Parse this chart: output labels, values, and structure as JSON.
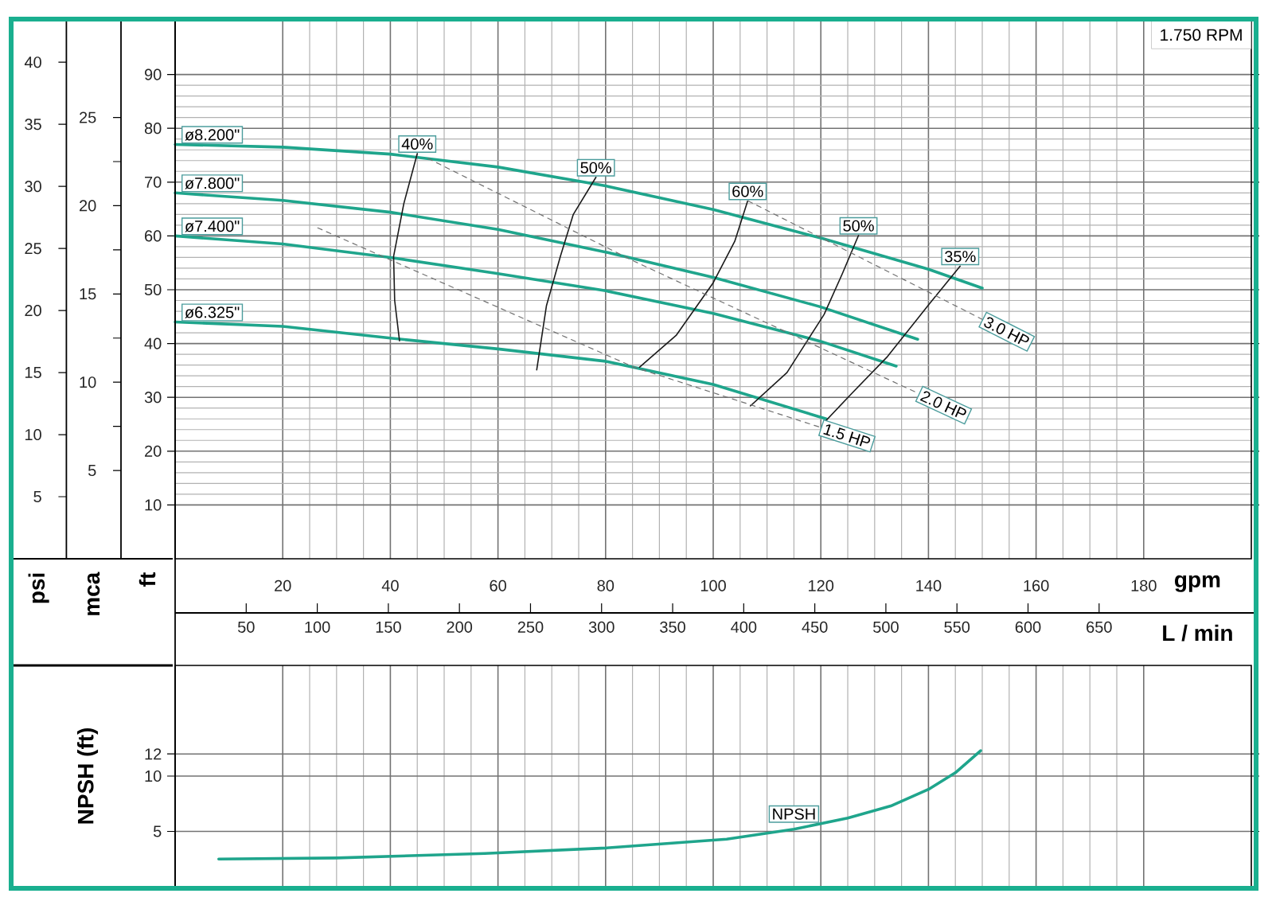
{
  "chart_data": [
    {
      "type": "line",
      "xlabel": "gpm",
      "ylabel": "ft",
      "y2label": "mca",
      "y3label": "psi",
      "x2label": "L / min",
      "xlim": [
        0,
        200
      ],
      "xticks": [
        20,
        40,
        60,
        80,
        100,
        120,
        140,
        160,
        180
      ],
      "ylim": [
        0,
        100
      ],
      "yticks": [
        10,
        20,
        30,
        40,
        50,
        60,
        70,
        80,
        90
      ],
      "y2lim": [
        0,
        30.48
      ],
      "y2ticks": [
        5,
        10,
        15,
        20,
        25
      ],
      "y3lim": [
        0,
        43.35
      ],
      "y3ticks": [
        5,
        10,
        15,
        20,
        25,
        30,
        35,
        40
      ],
      "x2lim": [
        0,
        757.08
      ],
      "x2ticks": [
        50,
        100,
        150,
        200,
        250,
        300,
        350,
        400,
        450,
        500,
        550,
        600,
        650
      ],
      "grid": true,
      "annotations": [
        "1.750 RPM"
      ],
      "series": [
        {
          "name": "ø8.200\"",
          "color": "#1fa58c",
          "line_style": "solid",
          "x": [
            0,
            20,
            40,
            60,
            80,
            100,
            120,
            140,
            150
          ],
          "values": [
            77,
            76.5,
            75.2,
            72.8,
            69.3,
            64.9,
            59.6,
            53.8,
            50.3
          ]
        },
        {
          "name": "ø7.800\"",
          "color": "#1fa58c",
          "line_style": "solid",
          "x": [
            0,
            20,
            40,
            60,
            80,
            100,
            120,
            138
          ],
          "values": [
            68,
            66.6,
            64.4,
            61.2,
            57,
            52.3,
            46.8,
            40.8
          ]
        },
        {
          "name": "ø7.400\"",
          "color": "#1fa58c",
          "line_style": "solid",
          "x": [
            0,
            20,
            40,
            60,
            80,
            100,
            120,
            134
          ],
          "values": [
            60,
            58.5,
            56,
            53,
            49.8,
            45.6,
            40.4,
            35.8
          ]
        },
        {
          "name": "ø6.325\"",
          "color": "#1fa58c",
          "line_style": "solid",
          "x": [
            0,
            20,
            40,
            60,
            80,
            100,
            121
          ],
          "values": [
            44,
            43.2,
            41,
            39,
            36.7,
            32.4,
            26
          ]
        },
        {
          "name": "40%",
          "color": "#1a1a1a",
          "line_style": "solid",
          "x": [
            45,
            42.5,
            40.6,
            40.8,
            41.7
          ],
          "values": [
            75.3,
            66,
            56.2,
            48,
            40.5
          ]
        },
        {
          "name": "50%",
          "color": "#1a1a1a",
          "line_style": "solid",
          "x": [
            78.2,
            74,
            71.6,
            69,
            67.2
          ],
          "values": [
            70.9,
            64,
            56.2,
            47,
            35.1
          ]
        },
        {
          "name": "60%",
          "color": "#1a1a1a",
          "line_style": "solid",
          "x": [
            106.4,
            104,
            100,
            93.1,
            86.3
          ],
          "values": [
            66.5,
            59,
            51.3,
            41.5,
            35.6
          ]
        },
        {
          "name": "50%",
          "color": "#1a1a1a",
          "line_style": "solid",
          "x": [
            127,
            124,
            120.6,
            113.7,
            106.9
          ],
          "values": [
            60.1,
            53,
            45.4,
            34.6,
            28.4
          ]
        },
        {
          "name": "35%",
          "color": "#1a1a1a",
          "line_style": "solid",
          "x": [
            145.9,
            140.2,
            132.4,
            126,
            120.6
          ],
          "values": [
            54.4,
            47.4,
            37.6,
            31,
            25.3
          ]
        },
        {
          "name": "3.0 HP",
          "color": "#707070",
          "line_style": "dashed",
          "x": [
            106.5,
            126.5,
            150
          ],
          "values": [
            66.5,
            56.4,
            44.5
          ]
        },
        {
          "name": "2.0 HP",
          "color": "#707070",
          "line_style": "dashed",
          "x": [
            47,
            85.3,
            138.2
          ],
          "values": [
            74.4,
            55.3,
            30.7
          ]
        },
        {
          "name": "1.5 HP",
          "color": "#707070",
          "line_style": "dashed",
          "x": [
            26.5,
            85.3,
            120
          ],
          "values": [
            61.5,
            35.6,
            24.4
          ]
        }
      ]
    },
    {
      "type": "line",
      "ylabel": "NPSH (ft)",
      "xlim": [
        0,
        200
      ],
      "xticks": [
        20,
        40,
        60,
        80,
        100,
        120,
        140,
        160,
        180
      ],
      "ylim": [
        0,
        20
      ],
      "yticks": [
        5,
        10,
        12
      ],
      "grid": true,
      "tick_labels": "y",
      "series": [
        {
          "name": "NPSH",
          "color": "#1fa58c",
          "line_style": "solid",
          "x": [
            8.1,
            30,
            57.5,
            80,
            102.5,
            115,
            125,
            133,
            140,
            145,
            149.7
          ],
          "values": [
            2.5,
            2.6,
            3.0,
            3.5,
            4.3,
            5.2,
            6.2,
            7.3,
            8.8,
            10.3,
            12.3
          ]
        }
      ]
    }
  ]
}
